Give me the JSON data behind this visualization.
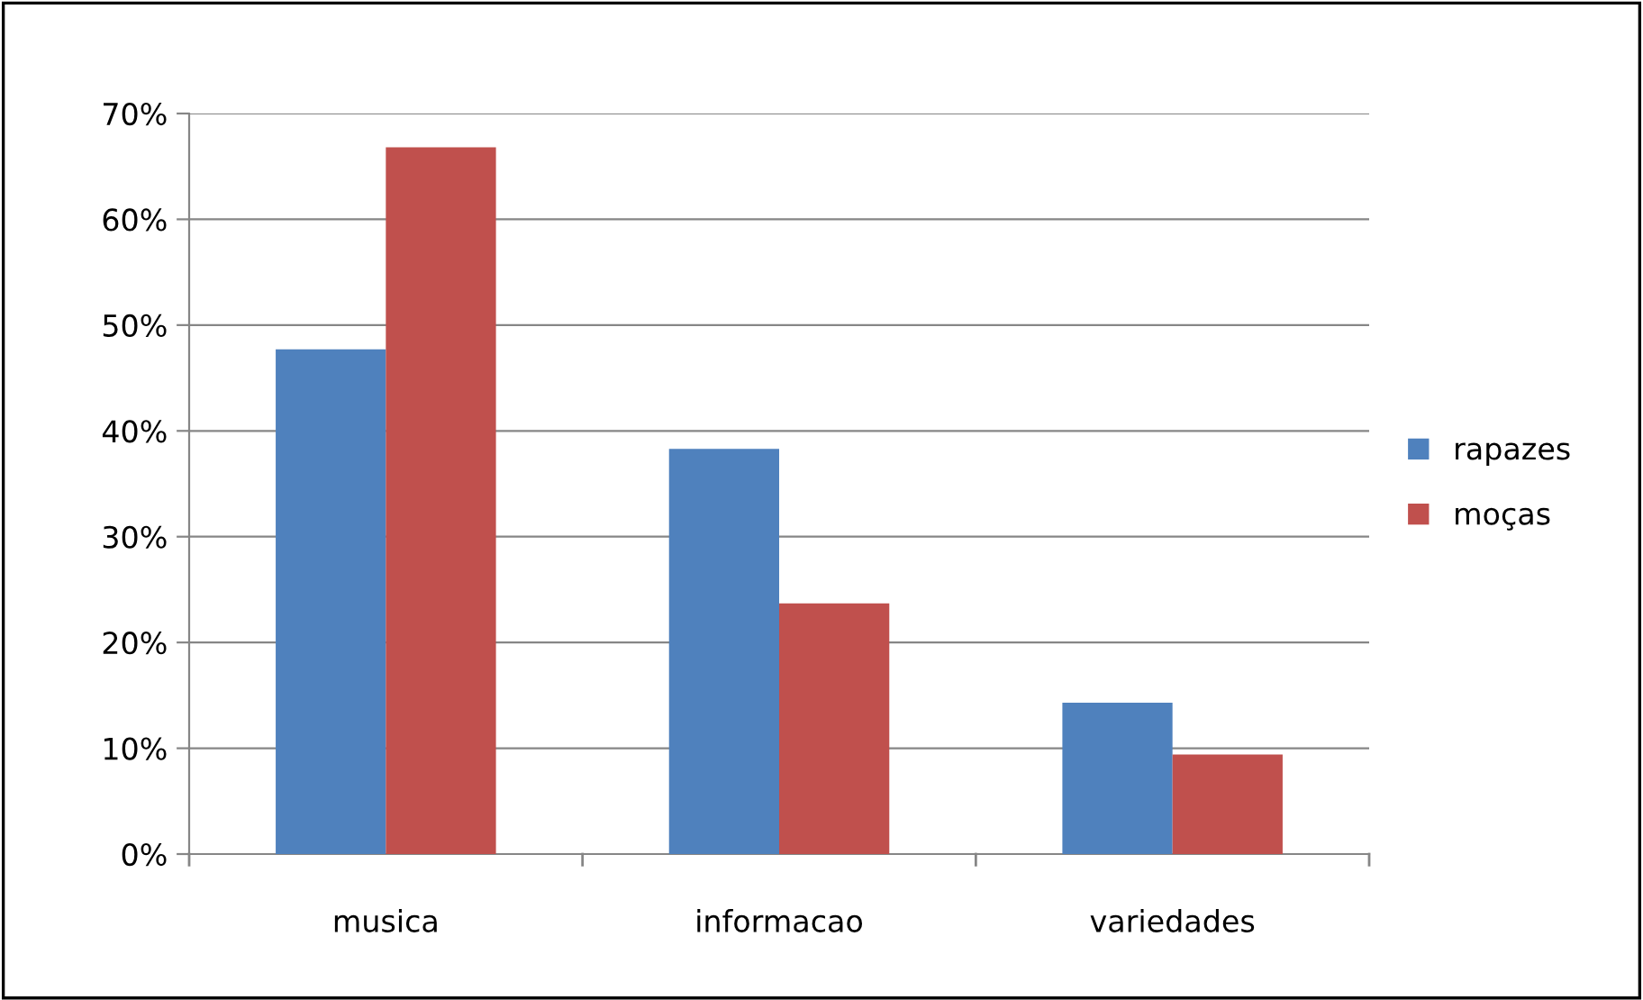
{
  "chart_data": {
    "type": "bar",
    "categories": [
      "musica",
      "informacao",
      "variedades"
    ],
    "series": [
      {
        "name": "rapazes",
        "color": "#4f81bd",
        "values": [
          47.7,
          38.3,
          14.3
        ]
      },
      {
        "name": "moças",
        "color": "#c0504d",
        "values": [
          66.8,
          23.7,
          9.4
        ]
      }
    ],
    "ylim": [
      0,
      70
    ],
    "yticks": [
      {
        "value": 0,
        "label": "0%"
      },
      {
        "value": 10,
        "label": "10%"
      },
      {
        "value": 20,
        "label": "20%"
      },
      {
        "value": 30,
        "label": "30%"
      },
      {
        "value": 40,
        "label": "40%"
      },
      {
        "value": 50,
        "label": "50%"
      },
      {
        "value": 60,
        "label": "60%"
      },
      {
        "value": 70,
        "label": "70%"
      }
    ],
    "grid": "y",
    "legend": "right"
  }
}
